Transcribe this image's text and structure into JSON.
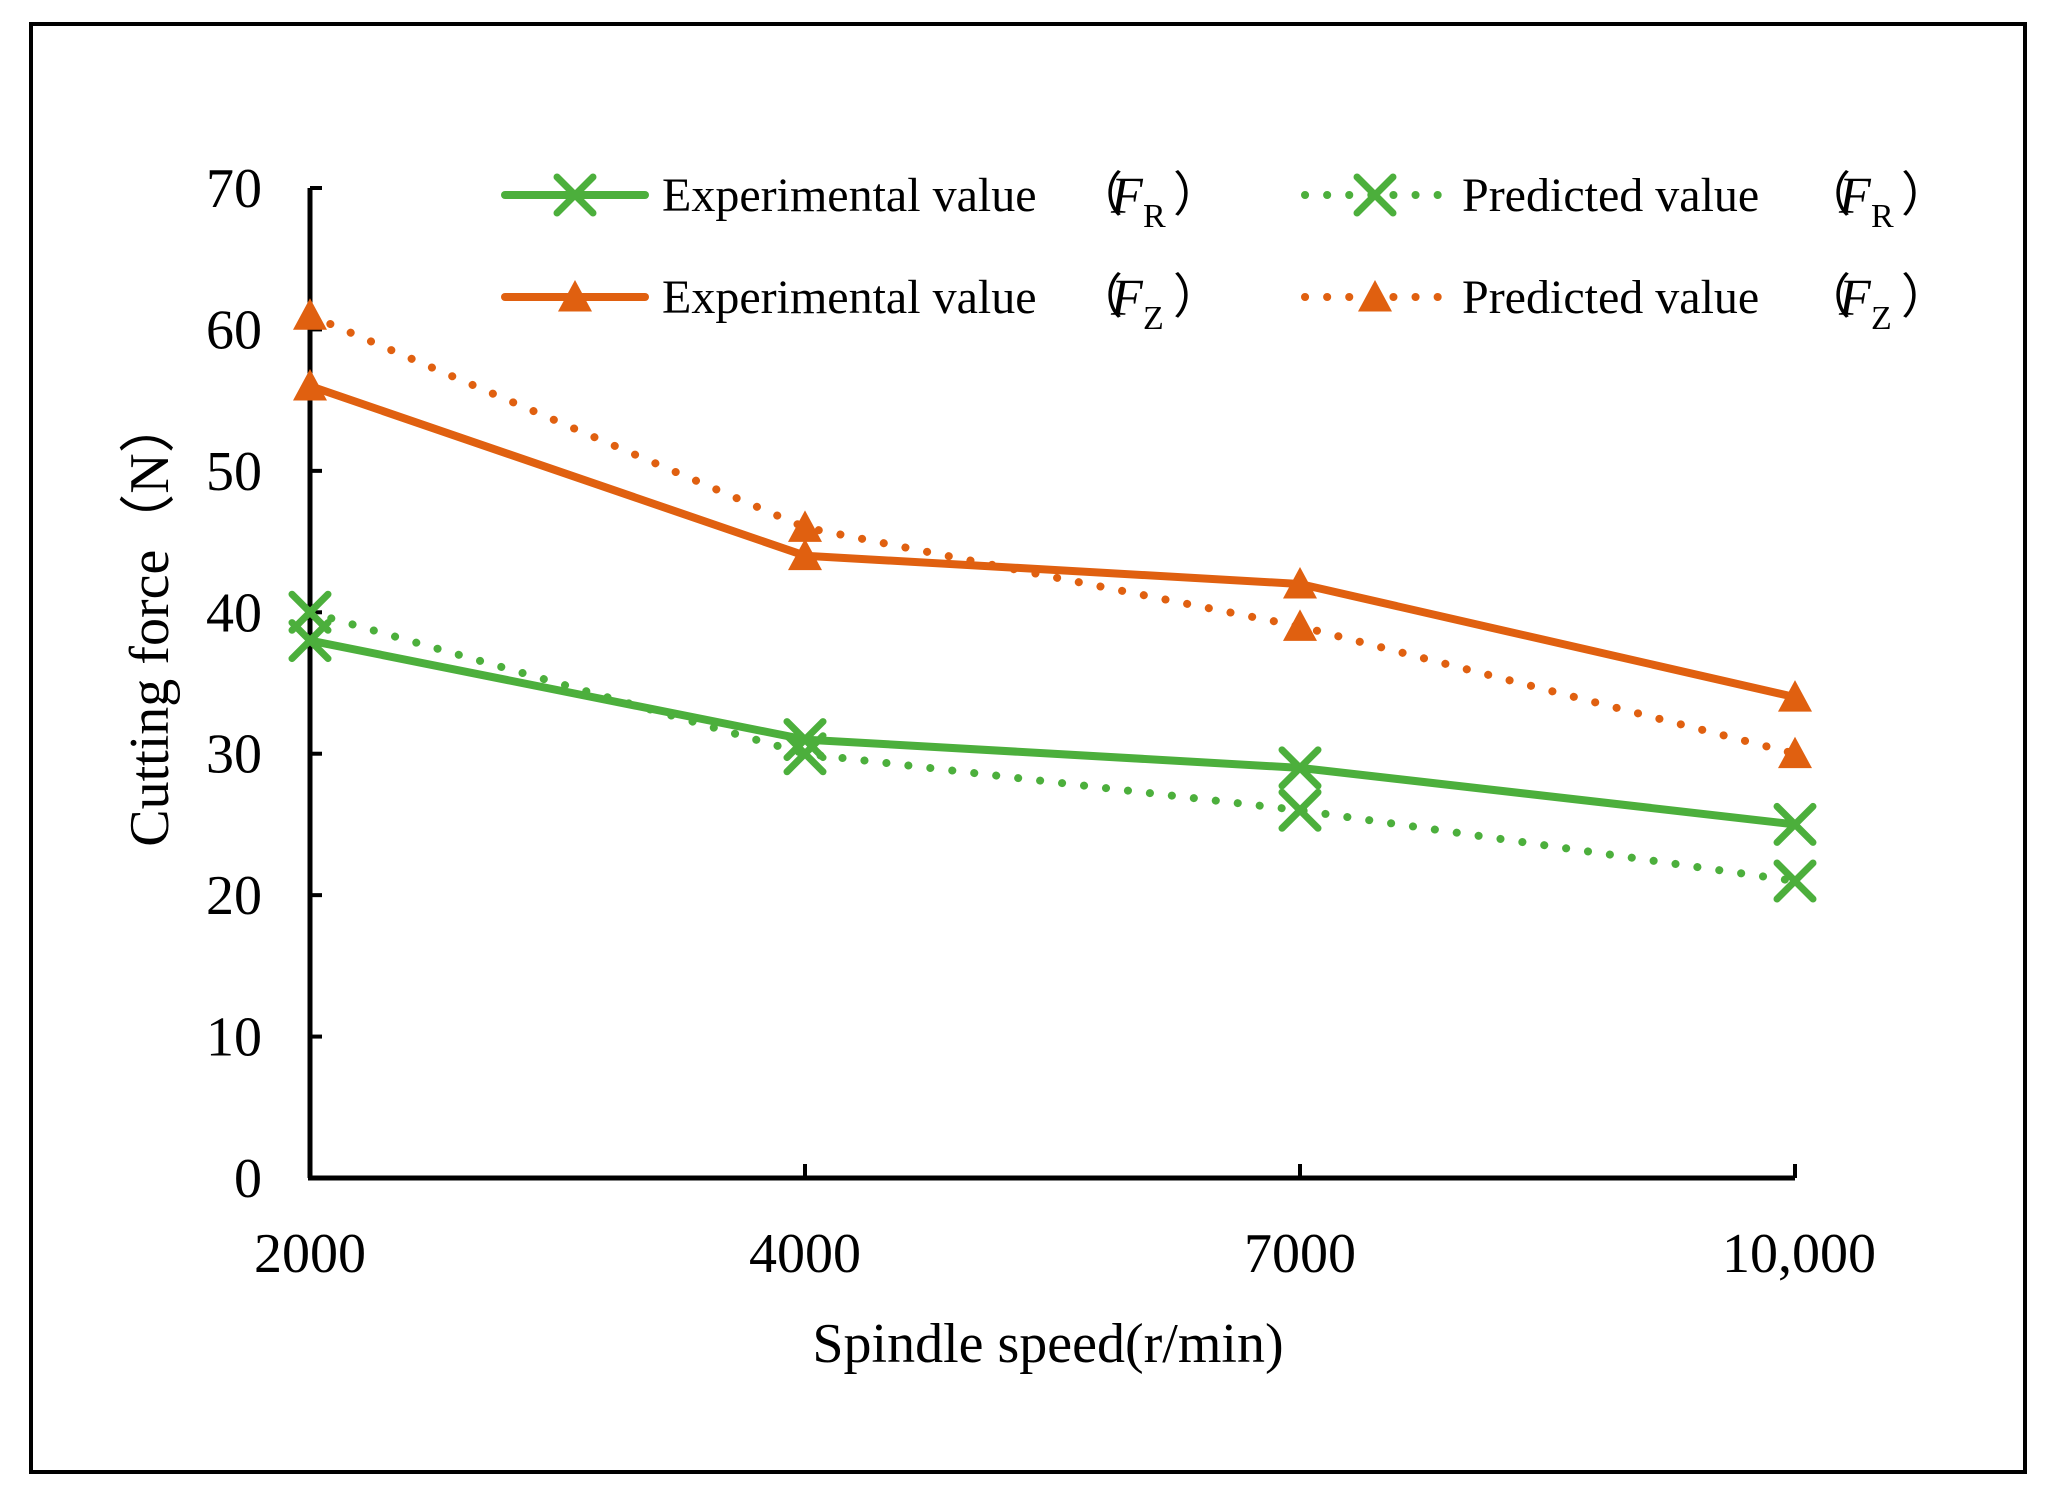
{
  "chart_data": {
    "type": "line",
    "xlabel": "Spindle speed(r/min)",
    "ylabel": "Cutting force（N）",
    "categories": [
      "2000",
      "4000",
      "7000",
      "10,000"
    ],
    "ylim": [
      0,
      70
    ],
    "yticks": [
      "0",
      "10",
      "20",
      "30",
      "40",
      "50",
      "60",
      "70"
    ],
    "legend_position": "top-right",
    "series": [
      {
        "name": "Experimental value",
        "var": "F",
        "sub": "R",
        "color": "#4caf3c",
        "style": "solid",
        "marker": "x",
        "values": [
          38,
          31,
          29,
          25
        ]
      },
      {
        "name": "Predicted value",
        "var": "F",
        "sub": "R",
        "color": "#4caf3c",
        "style": "dotted",
        "marker": "x",
        "values": [
          40,
          30,
          26,
          21
        ]
      },
      {
        "name": "Experimental value",
        "var": "F",
        "sub": "Z",
        "color": "#e06010",
        "style": "solid",
        "marker": "triangle",
        "values": [
          56,
          44,
          42,
          34
        ]
      },
      {
        "name": "Predicted value",
        "var": "F",
        "sub": "Z",
        "color": "#e06010",
        "style": "dotted",
        "marker": "triangle",
        "values": [
          61,
          46,
          39,
          30
        ]
      }
    ]
  }
}
